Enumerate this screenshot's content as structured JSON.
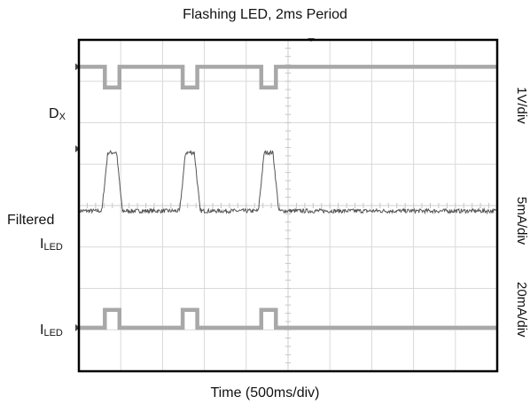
{
  "chart_data": {
    "type": "line",
    "title": "Flashing LED, 2ms Period",
    "xlabel": "Time (500ms/div)",
    "x_divisions": 10,
    "y_divisions": 8,
    "grid": true,
    "colors": {
      "frame": "#000000",
      "grid": "#d9d9d9",
      "digital_trace": "#a8a8a8",
      "analog_trace": "#555555"
    },
    "channels": [
      {
        "label_main": "D",
        "label_sub": "X",
        "scale": "1V/div",
        "style": "digital",
        "high_level_div": 7.35,
        "low_level_div": 6.85,
        "low_intervals_div": [
          [
            0.62,
            0.97
          ],
          [
            2.48,
            2.83
          ],
          [
            4.36,
            4.71
          ]
        ]
      },
      {
        "label_pre": "Filtered",
        "label_main": "I",
        "label_sub": "LED",
        "scale": "5mA/div",
        "style": "analog",
        "baseline_div": 3.87,
        "peak_div": 5.28,
        "pulse_intervals_div": [
          [
            0.62,
            0.97
          ],
          [
            2.48,
            2.83
          ],
          [
            4.36,
            4.71
          ]
        ]
      },
      {
        "label_main": "I",
        "label_sub": "LED",
        "scale": "20mA/div",
        "style": "digital",
        "high_level_div": 1.48,
        "low_level_div": 1.05,
        "high_intervals_div": [
          [
            0.62,
            0.97
          ],
          [
            2.48,
            2.83
          ],
          [
            4.36,
            4.71
          ]
        ]
      }
    ]
  }
}
